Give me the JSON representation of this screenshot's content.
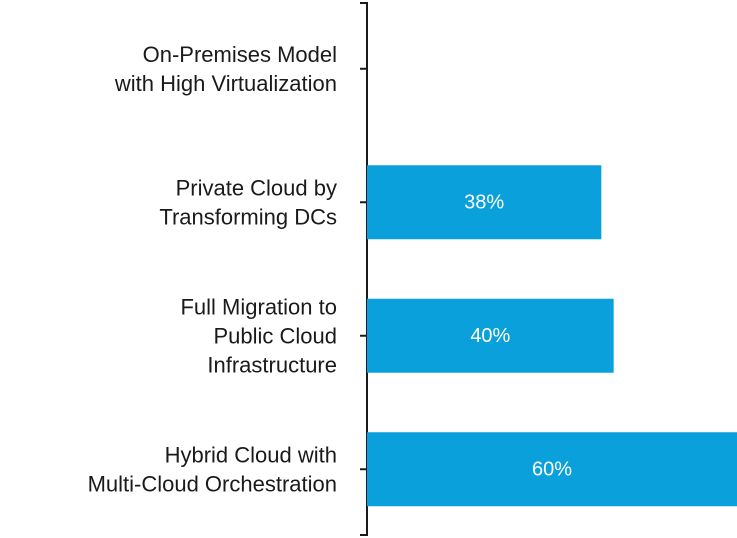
{
  "chart_data": {
    "type": "bar",
    "orientation": "horizontal",
    "categories": [
      "On-Premises Model with High Virtualization",
      "Private Cloud by Transforming DCs",
      "Full Migration to Public Cloud Infrastructure",
      "Hybrid Cloud with Multi-Cloud Orchestration"
    ],
    "category_lines": [
      [
        "On-Premises Model",
        "with High Virtualization"
      ],
      [
        "Private Cloud by",
        "Transforming DCs"
      ],
      [
        "Full Migration to",
        "Public Cloud",
        "Infrastructure"
      ],
      [
        "Hybrid Cloud with",
        "Multi-Cloud Orchestration"
      ]
    ],
    "values": [
      0,
      38,
      40,
      60
    ],
    "value_labels": [
      "",
      "38%",
      "40%",
      "60%"
    ],
    "title": "",
    "xlabel": "",
    "ylabel": "",
    "xlim": [
      0,
      60
    ],
    "grid": false,
    "bar_color": "#0aa0dc",
    "axis_color": "#1a1a1a"
  }
}
